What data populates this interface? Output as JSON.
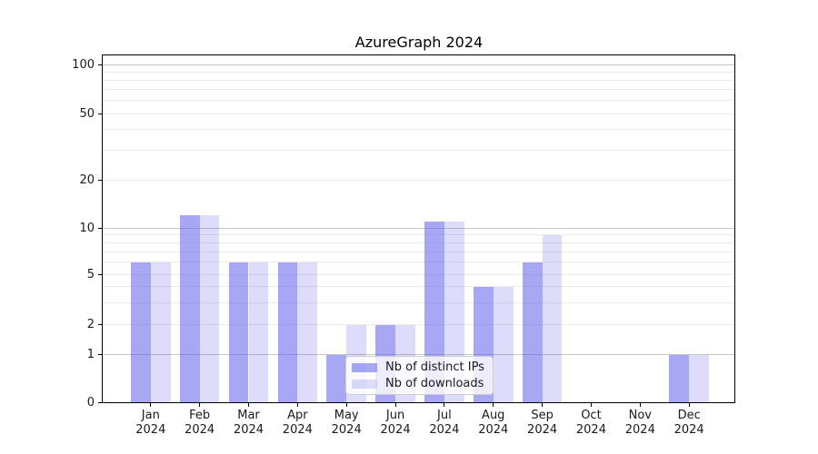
{
  "title": "AzureGraph 2024",
  "chart_data": {
    "type": "bar",
    "title": "AzureGraph 2024",
    "categories": [
      "Jan",
      "Feb",
      "Mar",
      "Apr",
      "May",
      "Jun",
      "Jul",
      "Aug",
      "Sep",
      "Oct",
      "Nov",
      "Dec"
    ],
    "year": "2024",
    "series": [
      {
        "name": "Nb of distinct IPs",
        "values": [
          6,
          12,
          6,
          6,
          1,
          2,
          11,
          4,
          6,
          0,
          0,
          1
        ]
      },
      {
        "name": "Nb of downloads",
        "values": [
          6,
          12,
          6,
          6,
          2,
          2,
          11,
          4,
          9,
          0,
          0,
          1
        ]
      }
    ],
    "xlabel": "",
    "ylabel": "",
    "scale": "pseudo-log (log1p-like), linear below 1",
    "yticks": [
      0,
      1,
      2,
      5,
      10,
      20,
      50,
      100
    ],
    "major_gridlines": [
      1,
      10,
      100
    ],
    "minor_gridlines": [
      2,
      3,
      4,
      5,
      6,
      7,
      8,
      9,
      20,
      30,
      40,
      50,
      60,
      70,
      80,
      90
    ],
    "ylim": [
      0,
      115
    ],
    "grid": "horizontal only",
    "legend_position": "lower center (inside plot)",
    "colors": {
      "bar_base": "#5f5feb",
      "distinct_ips_fill": "rgba(95,95,235,0.55)",
      "downloads_fill": "rgba(95,95,235,0.21)",
      "major_grid": "#c6c6c6",
      "minor_grid": "#ebebeb",
      "spine": "#000000"
    }
  }
}
